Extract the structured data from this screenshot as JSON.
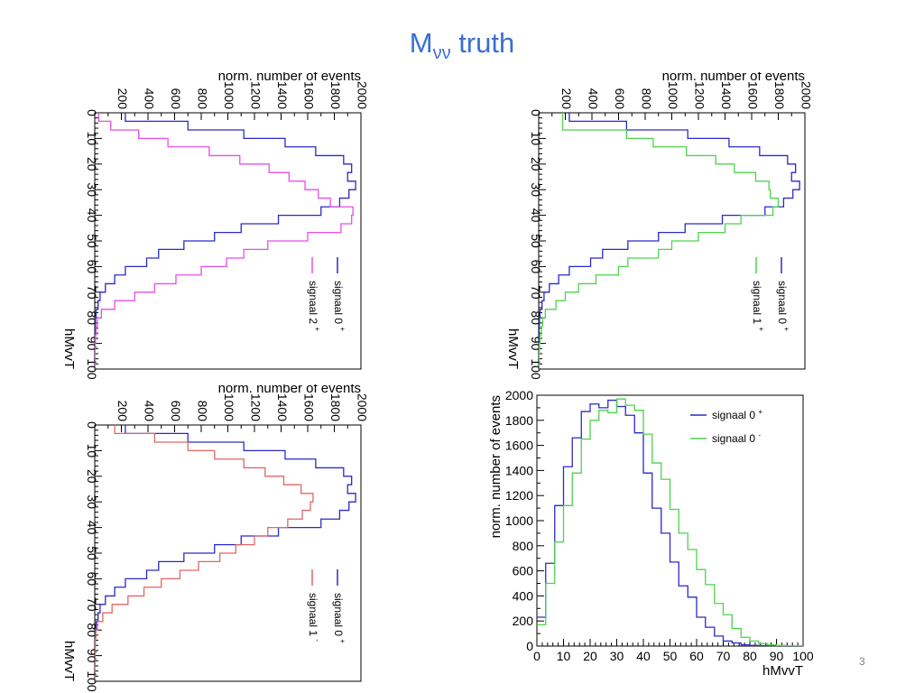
{
  "slide": {
    "title_main": "M",
    "title_sub": "νν",
    "title_rest": " truth",
    "page_number": "3"
  },
  "colors": {
    "title": "#3a6fd1",
    "signaal_0plus": "#2a2ac8",
    "signaal_2plus": "#e84de8",
    "signaal_1plus": "#4cd44c",
    "signaal_1minus": "#e06666",
    "signaal_0minus": "#4cd44c"
  },
  "chart_data": [
    {
      "id": "top-left",
      "type": "line",
      "step": true,
      "orientation": "rotated 90° clockwise",
      "xlabel": "hMvvT",
      "ylabel": "norm. number of events",
      "xlim": [
        0,
        100
      ],
      "ylim": [
        0,
        2000
      ],
      "xticks": [
        0,
        10,
        20,
        30,
        40,
        50,
        60,
        70,
        80,
        90,
        100
      ],
      "yticks": [
        200,
        400,
        600,
        800,
        1000,
        1200,
        1400,
        1600,
        1800,
        2000
      ],
      "bin_edges": [
        0,
        3.3,
        6.7,
        10,
        13.3,
        16.7,
        20,
        23.3,
        26.7,
        30,
        33.3,
        36.7,
        40,
        43.3,
        46.7,
        50,
        53.3,
        56.7,
        60,
        63.3,
        66.7,
        70,
        73.3,
        76.7,
        80,
        83.3,
        86.7,
        90,
        93.3,
        96.7,
        100
      ],
      "legend": {
        "position": "right"
      },
      "series": [
        {
          "name": "signaal 0",
          "sup": "+",
          "color": "#2a2ac8",
          "values": [
            230,
            700,
            1120,
            1430,
            1660,
            1870,
            1930,
            1900,
            1960,
            1910,
            1840,
            1700,
            1380,
            1100,
            900,
            670,
            480,
            390,
            230,
            150,
            80,
            40,
            25,
            10,
            5,
            3,
            2,
            1,
            0,
            0
          ]
        },
        {
          "name": "signaal 2",
          "sup": "+",
          "color": "#e84de8",
          "values": [
            30,
            120,
            330,
            550,
            860,
            1090,
            1310,
            1460,
            1580,
            1680,
            1770,
            1940,
            1930,
            1850,
            1600,
            1300,
            1120,
            990,
            800,
            610,
            450,
            300,
            150,
            50,
            20,
            10,
            5,
            2,
            1,
            0
          ]
        }
      ]
    },
    {
      "id": "top-right",
      "type": "line",
      "step": true,
      "orientation": "rotated 90° clockwise",
      "xlabel": "hMvvT",
      "ylabel": "norm. number of events",
      "xlim": [
        0,
        100
      ],
      "ylim": [
        0,
        2000
      ],
      "xticks": [
        0,
        10,
        20,
        30,
        40,
        50,
        60,
        70,
        80,
        90,
        100
      ],
      "yticks": [
        200,
        400,
        600,
        800,
        1000,
        1200,
        1400,
        1600,
        1800,
        2000
      ],
      "bin_edges": [
        0,
        3.3,
        6.7,
        10,
        13.3,
        16.7,
        20,
        23.3,
        26.7,
        30,
        33.3,
        36.7,
        40,
        43.3,
        46.7,
        50,
        53.3,
        56.7,
        60,
        63.3,
        66.7,
        70,
        73.3,
        76.7,
        80,
        83.3,
        86.7,
        90,
        93.3,
        96.7,
        100
      ],
      "legend": {
        "position": "right"
      },
      "series": [
        {
          "name": "signaal 0",
          "sup": "+",
          "color": "#2a2ac8",
          "values": [
            230,
            660,
            1120,
            1430,
            1660,
            1870,
            1930,
            1900,
            1960,
            1910,
            1840,
            1700,
            1380,
            1100,
            900,
            670,
            480,
            390,
            230,
            150,
            80,
            40,
            25,
            10,
            5,
            3,
            2,
            1,
            0,
            0
          ]
        },
        {
          "name": "signaal 1",
          "sup": "+",
          "color": "#4cd44c",
          "values": [
            180,
            180,
            660,
            860,
            1110,
            1330,
            1470,
            1630,
            1730,
            1740,
            1800,
            1760,
            1520,
            1400,
            1200,
            1000,
            900,
            670,
            600,
            430,
            300,
            200,
            130,
            50,
            30,
            20,
            10,
            5,
            2,
            1
          ]
        }
      ]
    },
    {
      "id": "bottom-left",
      "type": "line",
      "step": true,
      "orientation": "rotated 90° clockwise",
      "xlabel": "hMvvT",
      "ylabel": "norm. number of events",
      "xlim": [
        0,
        100
      ],
      "ylim": [
        0,
        2000
      ],
      "xticks": [
        0,
        10,
        20,
        30,
        40,
        50,
        60,
        70,
        80,
        90,
        100
      ],
      "yticks": [
        200,
        400,
        600,
        800,
        1000,
        1200,
        1400,
        1600,
        1800,
        2000
      ],
      "bin_edges": [
        0,
        3.3,
        6.7,
        10,
        13.3,
        16.7,
        20,
        23.3,
        26.7,
        30,
        33.3,
        36.7,
        40,
        43.3,
        46.7,
        50,
        53.3,
        56.7,
        60,
        63.3,
        66.7,
        70,
        73.3,
        76.7,
        80,
        83.3,
        86.7,
        90,
        93.3,
        96.7,
        100
      ],
      "legend": {
        "position": "right"
      },
      "series": [
        {
          "name": "signaal 0",
          "sup": "+",
          "color": "#2a2ac8",
          "values": [
            230,
            700,
            1120,
            1430,
            1660,
            1870,
            1930,
            1900,
            1960,
            1910,
            1840,
            1700,
            1380,
            1100,
            900,
            670,
            480,
            390,
            230,
            150,
            80,
            40,
            25,
            10,
            5,
            3,
            2,
            1,
            0,
            0
          ]
        },
        {
          "name": "signaal 1",
          "sup": "-",
          "color": "#e06666",
          "values": [
            150,
            450,
            700,
            900,
            1120,
            1280,
            1420,
            1550,
            1640,
            1620,
            1560,
            1450,
            1300,
            1200,
            1060,
            940,
            780,
            640,
            500,
            370,
            250,
            130,
            60,
            20,
            8,
            4,
            2,
            1,
            0,
            0
          ]
        }
      ]
    },
    {
      "id": "bottom-right",
      "type": "line",
      "step": true,
      "orientation": "normal",
      "xlabel": "hMvvT",
      "ylabel": "norm. number of events",
      "xlim": [
        0,
        100
      ],
      "ylim": [
        0,
        2000
      ],
      "xticks": [
        0,
        10,
        20,
        30,
        40,
        50,
        60,
        70,
        80,
        90,
        100
      ],
      "yticks": [
        0,
        200,
        400,
        600,
        800,
        1000,
        1200,
        1400,
        1600,
        1800,
        2000
      ],
      "bin_edges": [
        0,
        3.3,
        6.7,
        10,
        13.3,
        16.7,
        20,
        23.3,
        26.7,
        30,
        33.3,
        36.7,
        40,
        43.3,
        46.7,
        50,
        53.3,
        56.7,
        60,
        63.3,
        66.7,
        70,
        73.3,
        76.7,
        80,
        83.3,
        86.7,
        90,
        93.3,
        96.7,
        100
      ],
      "legend": {
        "position": "top-right"
      },
      "series": [
        {
          "name": "signaal 0",
          "sup": "+",
          "color": "#2a2ac8",
          "values": [
            230,
            660,
            1120,
            1430,
            1660,
            1870,
            1930,
            1900,
            1960,
            1910,
            1840,
            1700,
            1380,
            1100,
            900,
            670,
            480,
            390,
            230,
            150,
            80,
            40,
            25,
            10,
            5,
            3,
            2,
            1,
            0,
            0
          ]
        },
        {
          "name": "signaal 0",
          "sup": "-",
          "color": "#4cd44c",
          "values": [
            170,
            500,
            830,
            1120,
            1380,
            1650,
            1800,
            1880,
            1860,
            1970,
            1920,
            1880,
            1690,
            1460,
            1330,
            1090,
            900,
            770,
            610,
            490,
            340,
            250,
            140,
            70,
            40,
            20,
            10,
            5,
            2,
            1
          ]
        }
      ]
    }
  ]
}
